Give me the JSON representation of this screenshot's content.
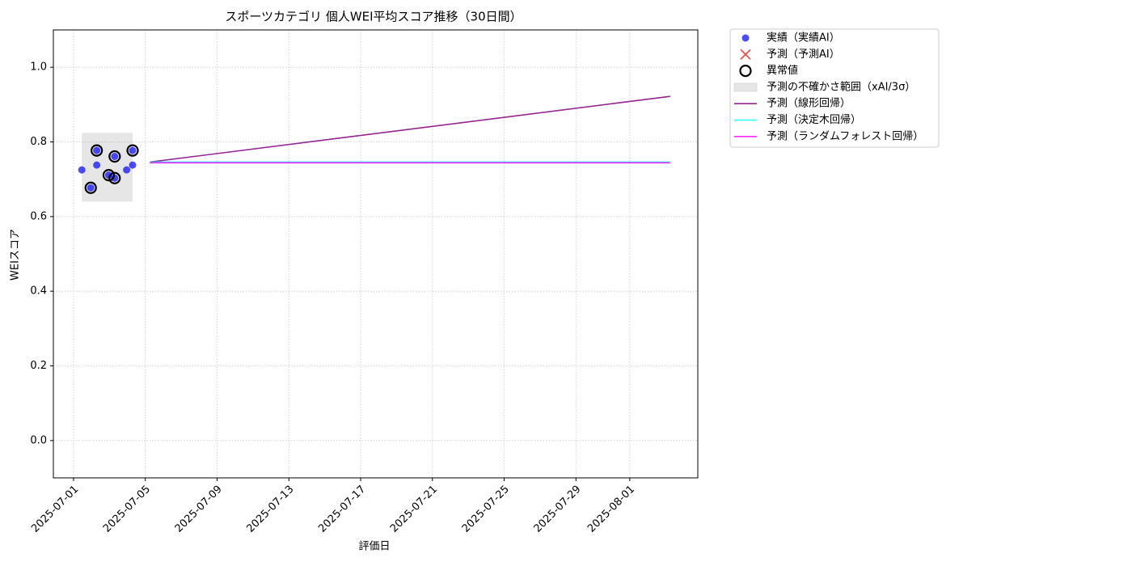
{
  "chart_data": {
    "type": "line",
    "title": "スポーツカテゴリ 個人WEI平均スコア推移（30日間）",
    "x_label": "評価日",
    "y_label": "WEIスコア",
    "xlim": [
      "2025-06-29T21:00",
      "2025-08-04T19:00"
    ],
    "xticks": [
      "2025-07-01",
      "2025-07-05",
      "2025-07-09",
      "2025-07-13",
      "2025-07-17",
      "2025-07-21",
      "2025-07-25",
      "2025-07-29",
      "2025-08-01"
    ],
    "ylim": [
      -0.1,
      1.1
    ],
    "yticks": [
      {
        "value": 0,
        "label": "0.0"
      },
      0.2,
      0.4,
      0.6,
      0.8,
      {
        "value": 1,
        "label": "1.0"
      }
    ],
    "grid": true,
    "legend": "outside-upper-right",
    "series": [
      {
        "name": "実績（実績AI）",
        "kind": "scatter",
        "color": "#0000ff",
        "x": [
          "2025-07-01T11:00",
          "2025-07-01T23:00",
          "2025-07-02T07:00",
          "2025-07-02T07:00",
          "2025-07-02T23:00",
          "2025-07-03T07:00",
          "2025-07-03T07:00",
          "2025-07-03T23:00",
          "2025-07-04T07:00",
          "2025-07-04T07:00"
        ],
        "values": [
          0.725,
          0.677,
          0.777,
          0.738,
          0.711,
          0.761,
          0.703,
          0.725,
          0.777,
          0.738
        ]
      },
      {
        "name": "予測（予測AI）",
        "kind": "cross",
        "color": "#ff0000",
        "x": [],
        "values": []
      },
      {
        "name": "異常値",
        "kind": "ring",
        "color": "#000000",
        "x": [
          "2025-07-01T23:00",
          "2025-07-02T07:00",
          "2025-07-02T23:00",
          "2025-07-03T07:00",
          "2025-07-03T07:00",
          "2025-07-04T07:00"
        ],
        "values": [
          0.677,
          0.777,
          0.711,
          0.761,
          0.703,
          0.777
        ]
      },
      {
        "name": "予測の不確かさ範囲（xAI/3σ）",
        "kind": "band",
        "color": "#808080",
        "x": [
          "2025-07-01T11:00",
          "2025-07-04T07:00"
        ],
        "lower": 0.64,
        "upper": 0.824
      },
      {
        "name": "予測（線形回帰）",
        "kind": "line",
        "color": "#800080",
        "x": [
          "2025-07-05T06:00",
          "2025-08-03T06:00"
        ],
        "values": [
          0.746,
          0.922
        ]
      },
      {
        "name": "予測（決定木回帰）",
        "kind": "line",
        "color": "#00ffff",
        "x": [
          "2025-07-05T06:00",
          "2025-08-03T06:00"
        ],
        "values": [
          0.746,
          0.746
        ]
      },
      {
        "name": "予測（ランダムフォレスト回帰）",
        "kind": "line",
        "color": "#ff00ff",
        "x": [
          "2025-07-05T06:00",
          "2025-08-03T06:00"
        ],
        "values": [
          0.744,
          0.744
        ]
      }
    ]
  }
}
